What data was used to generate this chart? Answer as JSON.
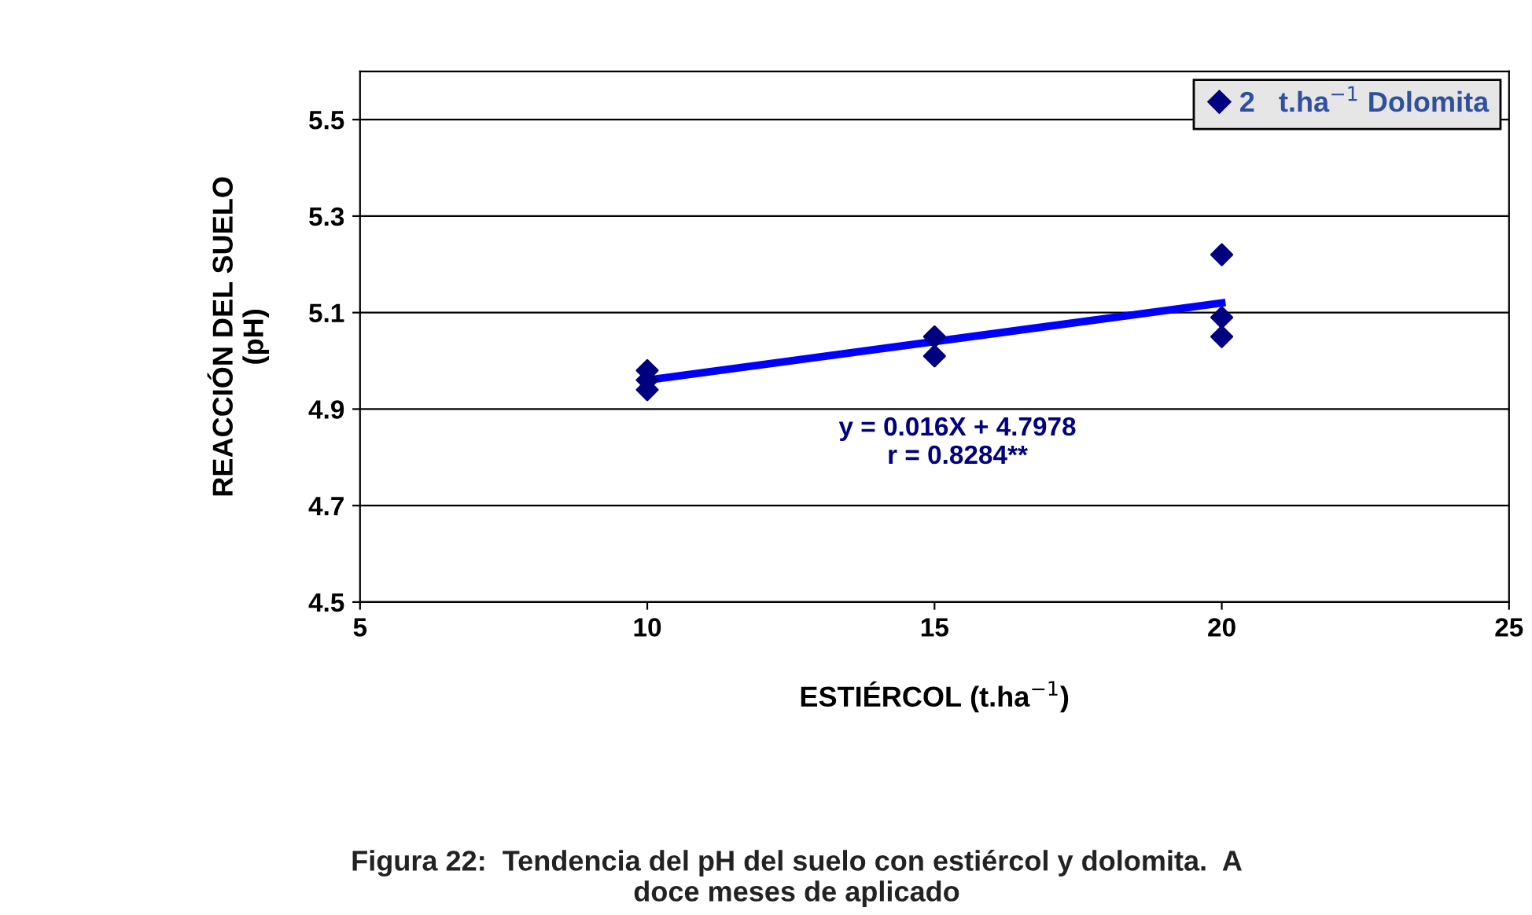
{
  "chart_data": {
    "type": "scatter",
    "xlabel": "ESTIÉRCOL (t.ha$^{−1}$)",
    "ylabel": "REACCIÓN DEL SUELO\n(pH)",
    "series": [
      {
        "name": "2   t.ha$^{−1}$ Dolomita",
        "color": "#000080",
        "x": [
          10,
          10,
          10,
          15,
          15,
          20,
          20,
          20
        ],
        "values": [
          4.98,
          4.96,
          4.94,
          5.05,
          5.01,
          5.22,
          5.09,
          5.05
        ]
      },
      {
        "type": "line",
        "marker": "none",
        "color": "#0000ff",
        "x": [
          10,
          20
        ],
        "values": [
          4.96,
          5.12
        ]
      }
    ],
    "xlim": [
      5,
      25
    ],
    "xticks": [
      5,
      10,
      15,
      20,
      25
    ],
    "ylim": [
      4.5,
      5.6
    ],
    "yticks": [
      4.5,
      4.7,
      4.9,
      5.1,
      5.3,
      5.5
    ],
    "grid": "y",
    "legend": "top right",
    "marker": "diamond",
    "annotations": [
      "y = 0.016X + 4.7978\nr = 0.8284**",
      "Figura 22:  Tendencia del pH del suelo con estiércol y dolomita.  A\ndoce meses de aplicado"
    ]
  }
}
